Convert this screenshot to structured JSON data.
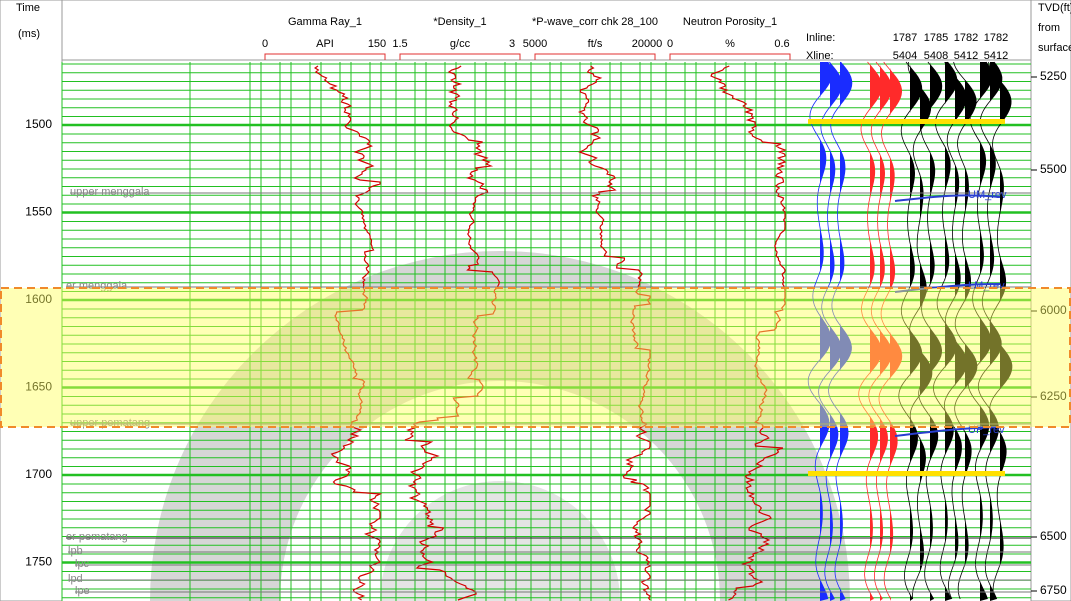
{
  "header": {
    "time_label": [
      "Time",
      "(ms)"
    ],
    "depth_label": [
      "TVD(ft)",
      "from",
      "surface"
    ]
  },
  "tracks": [
    {
      "name": "Gamma Ray_1",
      "min": "0",
      "unit": "API",
      "max": "150"
    },
    {
      "name": "*Density_1",
      "min": "1.5",
      "unit": "g/cc",
      "max": "3"
    },
    {
      "name": "*P-wave_corr chk 28_100",
      "min": "5000",
      "unit": "ft/s",
      "max": "20000"
    },
    {
      "name": "Neutron Porosity_1",
      "min": "0",
      "unit": "%",
      "max": "0.6"
    }
  ],
  "seismic": {
    "inline_label": "Inline:",
    "xline_label": "Xline:",
    "inlines": [
      "1787",
      "1785",
      "1782",
      "1782"
    ],
    "xlines": [
      "5404",
      "5408",
      "5412",
      "5412"
    ]
  },
  "time_axis": {
    "ticks": [
      1500,
      1550,
      1600,
      1650,
      1700,
      1750
    ]
  },
  "depth_axis": {
    "ticks": [
      5250,
      5500,
      6000,
      6250,
      6500,
      6750
    ]
  },
  "horizons_left": [
    "upper menggala",
    "er menggala",
    "upper pematang",
    "er pematang",
    "lpb",
    "lpc",
    "lpd",
    "lpe"
  ],
  "horizons_right": [
    "UM_rev",
    "LM_rev",
    "UP_rev"
  ]
}
